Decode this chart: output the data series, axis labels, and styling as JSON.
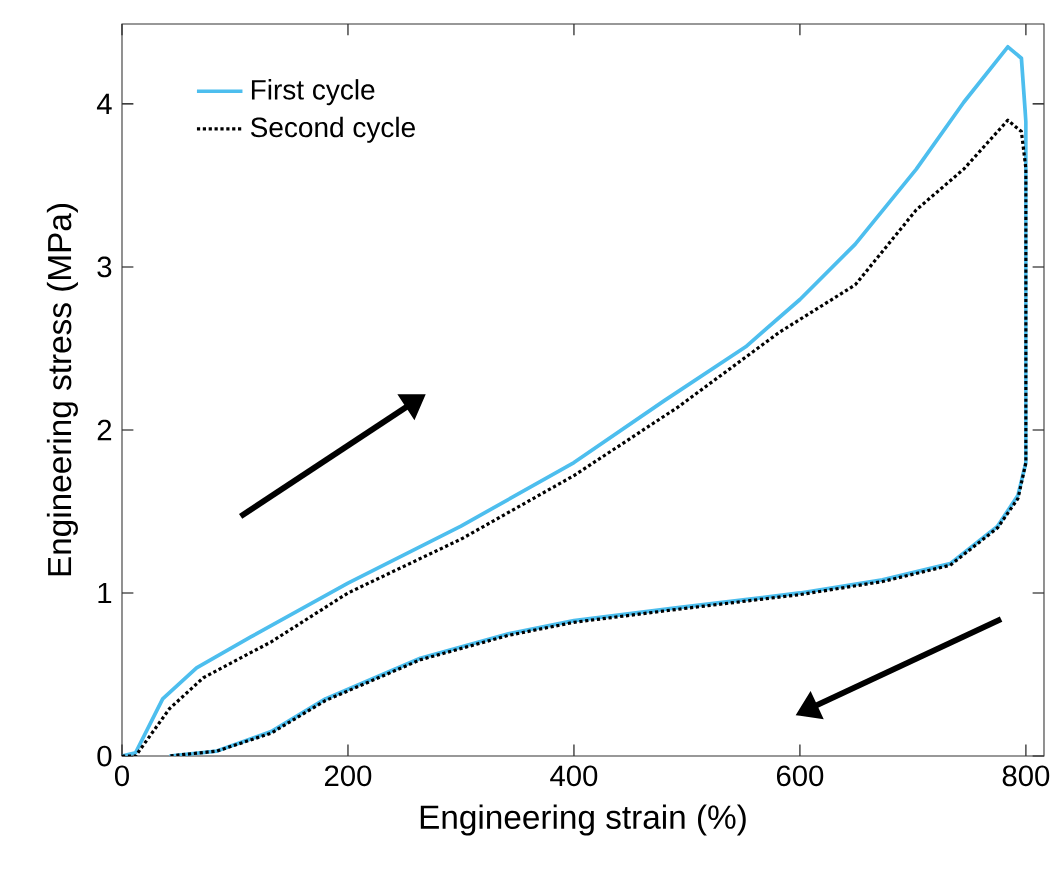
{
  "chart_data": {
    "type": "line",
    "xlabel": "Engineering strain (%)",
    "ylabel": "Engineering stress (MPa)",
    "xlim": [
      0,
      816
    ],
    "ylim": [
      0,
      4.49
    ],
    "xticks": [
      0,
      200,
      400,
      600,
      800
    ],
    "yticks": [
      0,
      1,
      2,
      3,
      4
    ],
    "grid": false,
    "legend": "top left",
    "marker": "none",
    "series": [
      {
        "name": "First cycle",
        "color": "#4dbeee",
        "line_style": "solid",
        "x": [
          0,
          12,
          36,
          66,
          114,
          200,
          300,
          400,
          480,
          552,
          600,
          649,
          703,
          745,
          784,
          796,
          800,
          800,
          793,
          775,
          733,
          673,
          600,
          492,
          400,
          342,
          264,
          180,
          132,
          84,
          42
        ],
        "values": [
          0,
          0.02,
          0.35,
          0.54,
          0.73,
          1.06,
          1.41,
          1.8,
          2.18,
          2.51,
          2.8,
          3.14,
          3.6,
          4.01,
          4.35,
          4.28,
          3.89,
          1.8,
          1.6,
          1.41,
          1.18,
          1.08,
          1.0,
          0.91,
          0.83,
          0.75,
          0.6,
          0.35,
          0.15,
          0.03,
          0
        ]
      },
      {
        "name": "Second cycle",
        "color": "#000000",
        "line_style": "dotted",
        "x": [
          0,
          12,
          42,
          72,
          132,
          200,
          300,
          400,
          492,
          582,
          649,
          703,
          745,
          784,
          796,
          800,
          800,
          793,
          775,
          733,
          673,
          600,
          492,
          400,
          342,
          264,
          180,
          132,
          84,
          42
        ],
        "values": [
          0,
          0,
          0.29,
          0.48,
          0.7,
          1.0,
          1.33,
          1.72,
          2.14,
          2.6,
          2.89,
          3.35,
          3.6,
          3.9,
          3.83,
          3.6,
          1.8,
          1.58,
          1.4,
          1.17,
          1.07,
          0.99,
          0.9,
          0.82,
          0.74,
          0.59,
          0.34,
          0.14,
          0.03,
          0
        ]
      }
    ]
  }
}
